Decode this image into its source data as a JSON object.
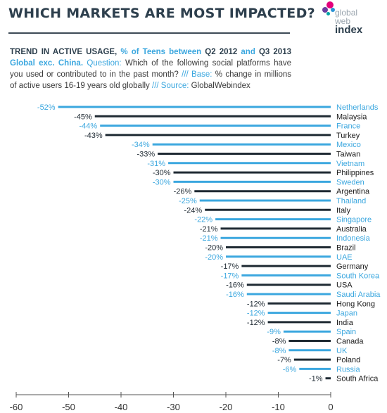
{
  "header": {
    "title": "WHICH MARKETS ARE MOST IMPACTED?",
    "logo": {
      "line1": "global",
      "line2": "web",
      "line3": "index"
    }
  },
  "description": {
    "l1_a": "TREND IN ACTIVE USAGE, ",
    "l1_b": "% of Teens between ",
    "l1_c": "Q2 2012 ",
    "l1_d": "and ",
    "l1_e": "Q3 2013",
    "l2_a": "Global exc. China. ",
    "l2_b": "Question: ",
    "l2_c": "Which of the following social platforms have",
    "l3_a": "you used or contributed to in the past month? ",
    "l3_b": "/// Base: ",
    "l3_c": "% change in millions",
    "l4_a": "of active users 16-19 years old globally ",
    "l4_b": "///  Source: ",
    "l4_c": "GlobalWebindex"
  },
  "colors": {
    "light": "#3ba7df",
    "dark": "#1f2a33",
    "axis": "#555555"
  },
  "chart_data": {
    "type": "bar",
    "orientation": "horizontal",
    "categories": [
      "Netherlands",
      "Malaysia",
      "France",
      "Turkey",
      "Mexico",
      "Taiwan",
      "Vietnam",
      "Philippines",
      "Sweden",
      "Argentina",
      "Thailand",
      "Italy",
      "Singapore",
      "Australia",
      "Indonesia",
      "Brazil",
      "UAE",
      "Germany",
      "South Korea",
      "USA",
      "Saudi Arabia",
      "Hong Kong",
      "Japan",
      "India",
      "Spain",
      "Canada",
      "UK",
      "Poland",
      "Russia",
      "South Africa"
    ],
    "values": [
      -52,
      -45,
      -44,
      -43,
      -34,
      -33,
      -31,
      -30,
      -30,
      -26,
      -25,
      -24,
      -22,
      -21,
      -21,
      -20,
      -20,
      -17,
      -17,
      -16,
      -16,
      -12,
      -12,
      -12,
      -9,
      -8,
      -8,
      -7,
      -6,
      -1
    ],
    "value_labels": [
      "-52%",
      "-45%",
      "-44%",
      "-43%",
      "-34%",
      "-33%",
      "-31%",
      "-30%",
      "-30%",
      "-26%",
      "-25%",
      "-24%",
      "-22%",
      "-21%",
      "-21%",
      "-20%",
      "-20%",
      "-17%",
      "-17%",
      "-16%",
      "-16%",
      "-12%",
      "-12%",
      "-12%",
      "-9%",
      "-8%",
      "-8%",
      "-7%",
      "-6%",
      "-1%"
    ],
    "bar_colors": [
      "light",
      "dark",
      "light",
      "dark",
      "light",
      "dark",
      "light",
      "dark",
      "light",
      "dark",
      "light",
      "dark",
      "light",
      "dark",
      "light",
      "dark",
      "light",
      "dark",
      "light",
      "dark",
      "light",
      "dark",
      "light",
      "dark",
      "light",
      "dark",
      "light",
      "dark",
      "light",
      "dark"
    ],
    "xlim": [
      -60,
      0
    ],
    "xticks": [
      -60,
      -50,
      -40,
      -30,
      -20,
      -10,
      0
    ],
    "grid": false
  }
}
